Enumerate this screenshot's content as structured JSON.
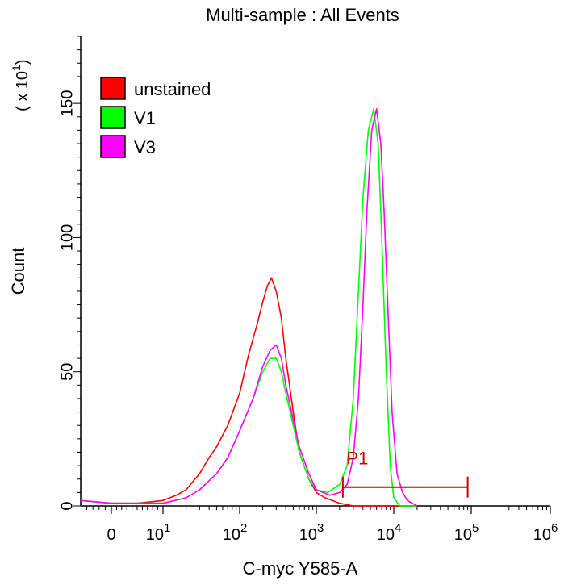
{
  "chart_data": {
    "type": "line",
    "title": "Multi-sample : All Events",
    "xlabel": "C-myc Y585-A",
    "ylabel": "Count",
    "y_multiplier_label": "( x 10",
    "y_multiplier_exp": "1",
    "x_scale": "biexponential",
    "ylim": [
      0,
      175
    ],
    "yticks": [
      0,
      50,
      100,
      150
    ],
    "xticks": [
      {
        "value": 0,
        "base": "0",
        "exp": ""
      },
      {
        "value": 10,
        "base": "10",
        "exp": "1"
      },
      {
        "value": 100,
        "base": "10",
        "exp": "2"
      },
      {
        "value": 1000,
        "base": "10",
        "exp": "3"
      },
      {
        "value": 10000,
        "base": "10",
        "exp": "4"
      },
      {
        "value": 100000,
        "base": "10",
        "exp": "5"
      },
      {
        "value": 1000000,
        "base": "10",
        "exp": "6"
      }
    ],
    "legend_position": "top-left",
    "grid": false,
    "series": [
      {
        "name": "unstained",
        "color": "#ff0000",
        "points": [
          [
            -5,
            2
          ],
          [
            0,
            1
          ],
          [
            2,
            1
          ],
          [
            5,
            1
          ],
          [
            10,
            2
          ],
          [
            15,
            4
          ],
          [
            20,
            6
          ],
          [
            30,
            12
          ],
          [
            40,
            18
          ],
          [
            50,
            22
          ],
          [
            70,
            30
          ],
          [
            100,
            42
          ],
          [
            130,
            56
          ],
          [
            170,
            68
          ],
          [
            200,
            76
          ],
          [
            230,
            82
          ],
          [
            260,
            85
          ],
          [
            300,
            80
          ],
          [
            350,
            70
          ],
          [
            400,
            55
          ],
          [
            500,
            35
          ],
          [
            600,
            20
          ],
          [
            800,
            10
          ],
          [
            1000,
            5
          ],
          [
            1300,
            3
          ],
          [
            2000,
            1
          ],
          [
            3000,
            0
          ],
          [
            5000,
            0
          ],
          [
            10000,
            0
          ],
          [
            20000,
            0
          ]
        ]
      },
      {
        "name": "V1",
        "color": "#00ff00",
        "points": [
          [
            -5,
            2
          ],
          [
            0,
            1
          ],
          [
            5,
            1
          ],
          [
            10,
            1
          ],
          [
            20,
            3
          ],
          [
            30,
            6
          ],
          [
            50,
            12
          ],
          [
            70,
            18
          ],
          [
            100,
            28
          ],
          [
            150,
            40
          ],
          [
            200,
            50
          ],
          [
            250,
            55
          ],
          [
            300,
            55
          ],
          [
            350,
            50
          ],
          [
            400,
            42
          ],
          [
            500,
            30
          ],
          [
            600,
            20
          ],
          [
            800,
            10
          ],
          [
            1000,
            6
          ],
          [
            1400,
            5
          ],
          [
            2000,
            8
          ],
          [
            2500,
            15
          ],
          [
            3000,
            40
          ],
          [
            3500,
            80
          ],
          [
            4000,
            115
          ],
          [
            4700,
            140
          ],
          [
            5500,
            148
          ],
          [
            6300,
            135
          ],
          [
            7000,
            100
          ],
          [
            8000,
            50
          ],
          [
            9000,
            15
          ],
          [
            10000,
            3
          ],
          [
            12000,
            0
          ],
          [
            20000,
            0
          ]
        ]
      },
      {
        "name": "V3",
        "color": "#ff00ff",
        "points": [
          [
            -5,
            2
          ],
          [
            0,
            1
          ],
          [
            5,
            1
          ],
          [
            10,
            1
          ],
          [
            20,
            3
          ],
          [
            30,
            6
          ],
          [
            50,
            12
          ],
          [
            70,
            18
          ],
          [
            100,
            28
          ],
          [
            150,
            40
          ],
          [
            200,
            52
          ],
          [
            250,
            58
          ],
          [
            300,
            60
          ],
          [
            350,
            55
          ],
          [
            400,
            45
          ],
          [
            500,
            32
          ],
          [
            600,
            22
          ],
          [
            800,
            12
          ],
          [
            1000,
            6
          ],
          [
            1500,
            4
          ],
          [
            2000,
            5
          ],
          [
            2500,
            8
          ],
          [
            3000,
            18
          ],
          [
            3500,
            40
          ],
          [
            4000,
            75
          ],
          [
            4500,
            110
          ],
          [
            5200,
            140
          ],
          [
            6000,
            148
          ],
          [
            6800,
            135
          ],
          [
            7500,
            110
          ],
          [
            8500,
            70
          ],
          [
            9500,
            35
          ],
          [
            11000,
            12
          ],
          [
            13000,
            5
          ],
          [
            15000,
            2
          ],
          [
            20000,
            0
          ]
        ]
      }
    ],
    "annotations": [
      {
        "label": "P1",
        "type": "gate",
        "x_start": 2200,
        "x_end": 90000,
        "y": 7,
        "color": "#cc0000"
      }
    ]
  }
}
